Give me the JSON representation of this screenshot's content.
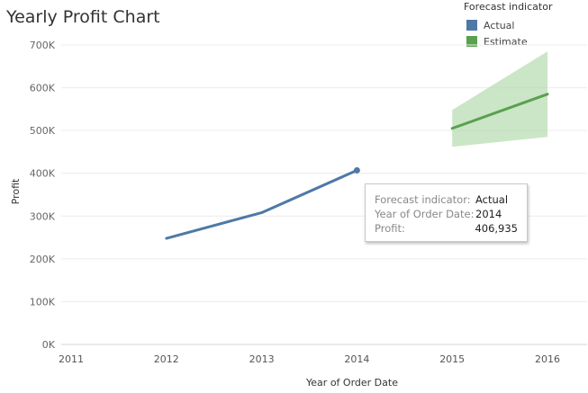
{
  "chart_data": {
    "type": "line",
    "title": "Yearly Profit Chart",
    "xlabel": "Year of Order Date",
    "ylabel": "Profit",
    "x_ticks": [
      "2011",
      "2012",
      "2013",
      "2014",
      "2015",
      "2016"
    ],
    "y_ticks": [
      "0K",
      "100K",
      "200K",
      "300K",
      "400K",
      "500K",
      "600K",
      "700K"
    ],
    "xlim": [
      2011,
      2016
    ],
    "ylim": [
      0,
      700000
    ],
    "grid": true,
    "legend": {
      "title": "Forecast indicator",
      "position": "top-right",
      "items": [
        {
          "label": "Actual",
          "color": "#4e79a7"
        },
        {
          "label": "Estimate",
          "color": "#59a14f"
        }
      ]
    },
    "series": [
      {
        "name": "Actual",
        "color": "#4e79a7",
        "x": [
          2012,
          2013,
          2014
        ],
        "values": [
          248000,
          308000,
          406935
        ]
      },
      {
        "name": "Estimate",
        "color": "#59a14f",
        "x": [
          2015,
          2016
        ],
        "values": [
          505000,
          585000
        ]
      }
    ],
    "forecast_band": {
      "x": [
        2015,
        2016
      ],
      "lower": [
        462000,
        485000
      ],
      "upper": [
        548000,
        685000
      ],
      "color": "#a8d5a0"
    },
    "tooltip": {
      "rows": [
        {
          "key": "Forecast indicator:",
          "value": "Actual"
        },
        {
          "key": "Year of Order Date:",
          "value": "2014"
        },
        {
          "key": "Profit:",
          "value": "406,935"
        }
      ]
    }
  }
}
